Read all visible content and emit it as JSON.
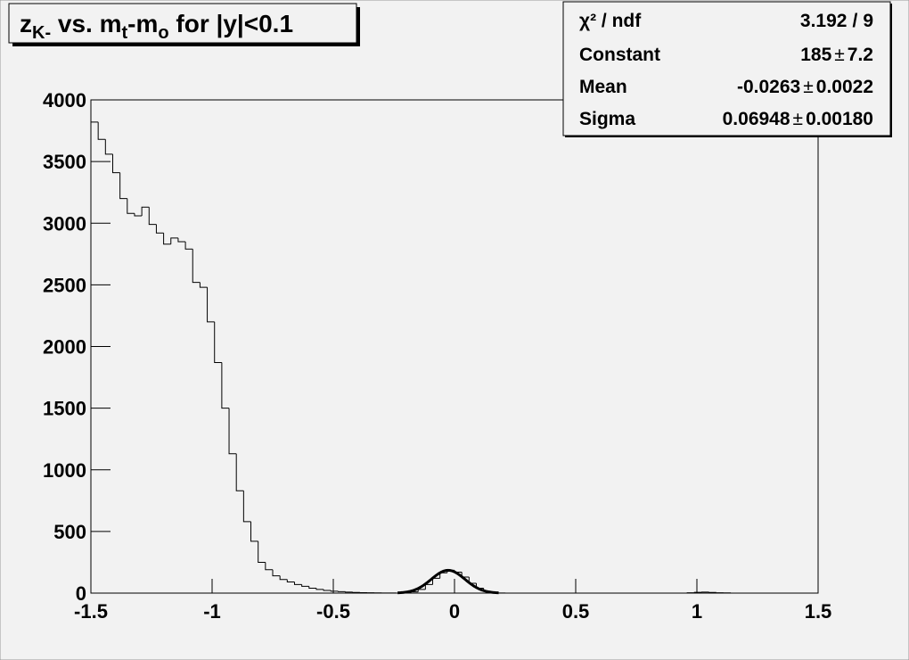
{
  "chart_data": {
    "type": "histogram",
    "title": {
      "parts": [
        "z",
        "K-",
        " vs. m",
        "t",
        "-m",
        "o",
        " for |y|<0.1"
      ],
      "subscript": [
        false,
        true,
        false,
        true,
        false,
        true,
        false
      ]
    },
    "bins": [
      -1.5,
      -1.47,
      -1.44,
      -1.41,
      -1.38,
      -1.35,
      -1.32,
      -1.29,
      -1.26,
      -1.23,
      -1.2,
      -1.17,
      -1.14,
      -1.11,
      -1.08,
      -1.05,
      -1.02,
      -0.99,
      -0.96,
      -0.93,
      -0.9,
      -0.87,
      -0.84,
      -0.81,
      -0.78,
      -0.75,
      -0.72,
      -0.69,
      -0.66,
      -0.63,
      -0.6,
      -0.57,
      -0.54,
      -0.51,
      -0.48,
      -0.45,
      -0.42,
      -0.39,
      -0.36,
      -0.33,
      -0.3,
      -0.27,
      -0.24,
      -0.21,
      -0.18,
      -0.15,
      -0.12,
      -0.09,
      -0.06,
      -0.03,
      0,
      0.03,
      0.06,
      0.09,
      0.12,
      0.15,
      0.18,
      0.21,
      0.24,
      0.27,
      0.3,
      0.33,
      0.36,
      0.39,
      0.42,
      0.45,
      0.48,
      0.51,
      0.54,
      0.57,
      0.6,
      0.63,
      0.66,
      0.69,
      0.72,
      0.75,
      0.78,
      0.81,
      0.84,
      0.87,
      0.9,
      0.93,
      0.96,
      0.99,
      1.02,
      1.05,
      1.08,
      1.11,
      1.14,
      1.17,
      1.2,
      1.23,
      1.26,
      1.29,
      1.32,
      1.35,
      1.38,
      1.41,
      1.44,
      1.47,
      1.5
    ],
    "counts": [
      3820,
      3680,
      3560,
      3410,
      3200,
      3080,
      3060,
      3130,
      2990,
      2920,
      2830,
      2880,
      2850,
      2790,
      2520,
      2480,
      2200,
      1870,
      1500,
      1130,
      830,
      580,
      420,
      250,
      190,
      140,
      110,
      90,
      70,
      55,
      40,
      30,
      22,
      15,
      12,
      8,
      5,
      4,
      3,
      2,
      1,
      1,
      0,
      2,
      10,
      30,
      70,
      120,
      165,
      185,
      170,
      130,
      80,
      40,
      15,
      5,
      1,
      0,
      0,
      0,
      0,
      0,
      0,
      0,
      0,
      0,
      0,
      0,
      0,
      0,
      0,
      0,
      0,
      0,
      0,
      0,
      0,
      0,
      0,
      0,
      0,
      0,
      3,
      6,
      8,
      5,
      3,
      2,
      0,
      0,
      0,
      0,
      0,
      0,
      0,
      0,
      0,
      0,
      0,
      0
    ],
    "color": "#000000",
    "xlim": [
      -1.5,
      1.5
    ],
    "xticks": [
      -1.5,
      -1,
      -0.5,
      0,
      0.5,
      1,
      1.5
    ],
    "ylim": [
      0,
      4000
    ],
    "yticks": [
      0,
      500,
      1000,
      1500,
      2000,
      2500,
      3000,
      3500,
      4000
    ],
    "fit": {
      "chi2_label": "χ² / ndf",
      "chi2": 3.192,
      "ratio_sign": "/",
      "ndf": 9,
      "pm_sign": "±",
      "params": [
        {
          "name": "Constant",
          "value": 185,
          "error": 7.2
        },
        {
          "name": "Mean",
          "value": -0.0263,
          "error": 0.0022
        },
        {
          "name": "Sigma",
          "value": 0.06948,
          "error": {
            "value": 0.0018,
            "label": "0.00180"
          }
        }
      ]
    }
  }
}
